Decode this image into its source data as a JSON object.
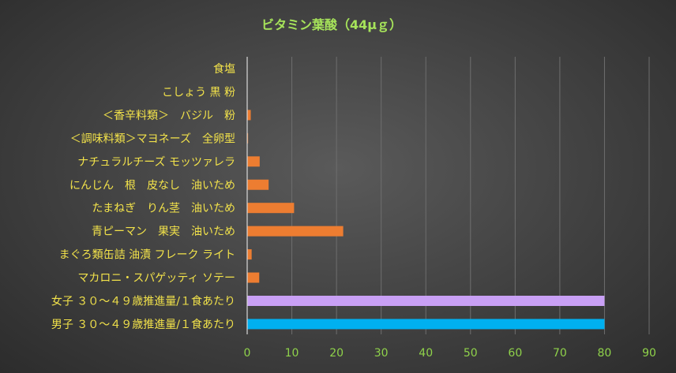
{
  "chart_data": {
    "type": "bar",
    "orientation": "horizontal",
    "title": "ビタミン葉酸（44μｇ）",
    "categories": [
      "食塩",
      "こしょう 黒 粉",
      "＜香辛料類＞　バジル　粉",
      "＜調味料類＞マヨネーズ　全卵型",
      "ナチュラルチーズ モッツァレラ",
      "にんじん　根　皮なし　油いため",
      "たまねぎ　りん茎　油いため",
      "青ピーマン　果実　油いため",
      "まぐろ類缶詰 油漬 フレーク ライト",
      "マカロニ・スパゲッティ ソテー",
      "女子 ３０～４９歳推進量/１食あたり",
      "男子 ３０～４９歳推進量/１食あたり"
    ],
    "values": [
      0,
      0,
      0.8,
      0.2,
      2.8,
      4.8,
      10.5,
      21.5,
      1.0,
      2.7,
      80,
      80
    ],
    "colors": [
      "#ed7d31",
      "#ed7d31",
      "#ed7d31",
      "#ed7d31",
      "#ed7d31",
      "#ed7d31",
      "#ed7d31",
      "#ed7d31",
      "#ed7d31",
      "#ed7d31",
      "#c9a0f5",
      "#00b0f0"
    ],
    "xlim": [
      0,
      90
    ],
    "xticks": [
      0,
      10,
      20,
      30,
      40,
      50,
      60,
      70,
      80,
      90
    ],
    "grid": true,
    "xlabel": "",
    "ylabel": ""
  }
}
